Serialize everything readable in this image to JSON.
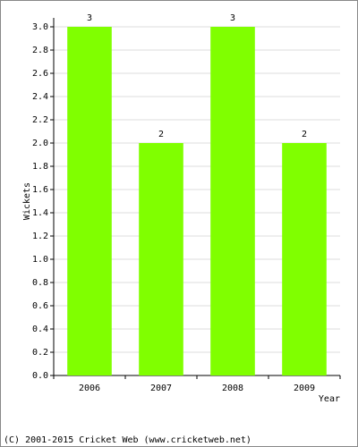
{
  "chart_data": {
    "type": "bar",
    "categories": [
      "2006",
      "2007",
      "2008",
      "2009"
    ],
    "values": [
      3,
      2,
      3,
      2
    ],
    "color": "#80ff00",
    "y_label": "Wickets",
    "x_label": "Year",
    "footer": "(C) 2001-2015 Cricket Web (www.cricketweb.net)",
    "ylim": [
      0,
      3
    ],
    "yticks": [
      {
        "value": 0,
        "label": "0.0"
      },
      {
        "value": 0.2,
        "label": "0.2"
      },
      {
        "value": 0.4,
        "label": "0.4"
      },
      {
        "value": 0.6,
        "label": "0.6"
      },
      {
        "value": 0.8,
        "label": "0.8"
      },
      {
        "value": 1,
        "label": "1.0"
      },
      {
        "value": 1.2,
        "label": "1.2"
      },
      {
        "value": 1.4,
        "label": "1.4"
      },
      {
        "value": 1.6,
        "label": "1.6"
      },
      {
        "value": 1.8,
        "label": "1.8"
      },
      {
        "value": 2,
        "label": "2.0"
      },
      {
        "value": 2.2,
        "label": "2.2"
      },
      {
        "value": 2.4,
        "label": "2.4"
      },
      {
        "value": 2.6,
        "label": "2.6"
      },
      {
        "value": 2.8,
        "label": "2.8"
      },
      {
        "value": 3,
        "label": "3.0"
      }
    ],
    "grid": true
  }
}
